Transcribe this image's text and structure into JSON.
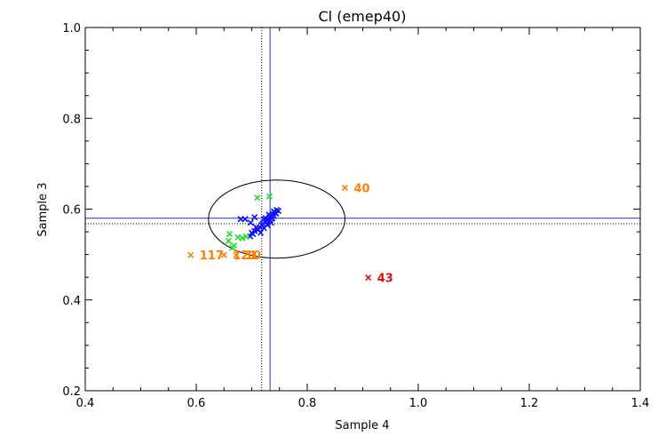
{
  "chart_data": {
    "type": "scatter",
    "title": "Cl (emep40)",
    "xlabel": "Sample 4",
    "ylabel": "Sample 3",
    "xlim": [
      0.4,
      1.4
    ],
    "ylim": [
      0.2,
      1.0
    ],
    "xticks": [
      "0.4",
      "0.6",
      "0.8",
      "1.0",
      "1.2",
      "1.4"
    ],
    "yticks": [
      "0.2",
      "0.4",
      "0.6",
      "0.8",
      "1.0"
    ],
    "marker": "x",
    "reference_lines": {
      "solid_vertical_x": 0.733,
      "solid_horizontal_y": 0.58,
      "dotted_vertical_x": 0.718,
      "dotted_horizontal_y": 0.568,
      "solid_color": "#2030c0",
      "dotted_color": "#000000"
    },
    "ellipse": {
      "cx": 0.745,
      "cy": 0.578,
      "rx": 0.123,
      "ry": 0.086,
      "color": "#000000"
    },
    "series": [
      {
        "color": "#1010ff",
        "points": [
          [
            0.68,
            0.578
          ],
          [
            0.688,
            0.578
          ],
          [
            0.705,
            0.582
          ],
          [
            0.698,
            0.57
          ],
          [
            0.7,
            0.548
          ],
          [
            0.705,
            0.552
          ],
          [
            0.71,
            0.556
          ],
          [
            0.715,
            0.56
          ],
          [
            0.718,
            0.565
          ],
          [
            0.72,
            0.568
          ],
          [
            0.722,
            0.558
          ],
          [
            0.725,
            0.572
          ],
          [
            0.728,
            0.575
          ],
          [
            0.73,
            0.578
          ],
          [
            0.732,
            0.582
          ],
          [
            0.735,
            0.585
          ],
          [
            0.738,
            0.59
          ],
          [
            0.74,
            0.595
          ],
          [
            0.742,
            0.592
          ],
          [
            0.745,
            0.598
          ],
          [
            0.748,
            0.596
          ],
          [
            0.735,
            0.57
          ],
          [
            0.728,
            0.565
          ],
          [
            0.712,
            0.555
          ],
          [
            0.702,
            0.545
          ],
          [
            0.708,
            0.56
          ],
          [
            0.725,
            0.58
          ],
          [
            0.74,
            0.585
          ],
          [
            0.744,
            0.59
          ],
          [
            0.716,
            0.548
          ],
          [
            0.733,
            0.575
          ],
          [
            0.737,
            0.58
          ],
          [
            0.697,
            0.54
          ],
          [
            0.722,
            0.578
          ],
          [
            0.731,
            0.588
          ]
        ]
      },
      {
        "color": "#20e020",
        "points": [
          [
            0.71,
            0.625
          ],
          [
            0.732,
            0.628
          ],
          [
            0.66,
            0.545
          ],
          [
            0.658,
            0.53
          ],
          [
            0.668,
            0.52
          ],
          [
            0.675,
            0.538
          ],
          [
            0.683,
            0.536
          ],
          [
            0.69,
            0.54
          ],
          [
            0.665,
            0.515
          ]
        ]
      }
    ],
    "labeled_points": [
      {
        "x": 0.868,
        "y": 0.647,
        "label": "40",
        "color": "#ff8000"
      },
      {
        "x": 0.91,
        "y": 0.449,
        "label": "43",
        "color": "#e01010"
      },
      {
        "x": 0.59,
        "y": 0.499,
        "label": "117",
        "color": "#ff8000"
      },
      {
        "x": 0.65,
        "y": 0.499,
        "label": "121",
        "color": "#ff8000"
      },
      {
        "x": 0.672,
        "y": 0.499,
        "label": "10",
        "color": "#ff8000"
      }
    ]
  }
}
